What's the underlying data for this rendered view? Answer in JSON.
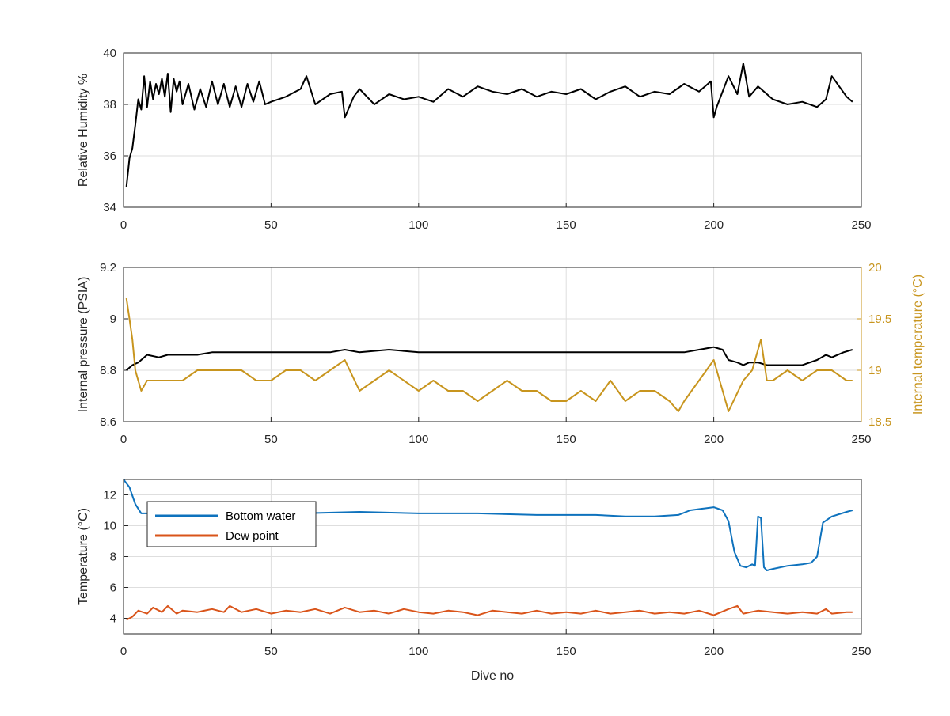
{
  "chart_data": [
    {
      "type": "line",
      "ylabel": "Relative Humidity %",
      "xlim": [
        0,
        250
      ],
      "ylim": [
        34,
        40
      ],
      "xticks": [
        "0",
        "50",
        "100",
        "150",
        "200",
        "250"
      ],
      "yticks": [
        "34",
        "36",
        "38",
        "40"
      ],
      "grid": true,
      "series": [
        {
          "color": "#000000",
          "x": [
            1,
            2,
            3,
            4,
            5,
            6,
            7,
            8,
            9,
            10,
            11,
            12,
            13,
            14,
            15,
            16,
            17,
            18,
            19,
            20,
            22,
            24,
            26,
            28,
            30,
            32,
            34,
            36,
            38,
            40,
            42,
            44,
            46,
            48,
            50,
            55,
            60,
            62,
            65,
            70,
            74,
            75,
            78,
            80,
            85,
            90,
            95,
            100,
            105,
            110,
            115,
            120,
            125,
            130,
            135,
            140,
            145,
            150,
            155,
            160,
            165,
            170,
            175,
            180,
            185,
            190,
            195,
            199,
            200,
            201,
            205,
            208,
            210,
            212,
            215,
            220,
            225,
            230,
            235,
            238,
            240,
            245,
            247
          ],
          "values": [
            34.8,
            35.9,
            36.3,
            37.2,
            38.2,
            37.8,
            39.1,
            37.9,
            38.9,
            38.2,
            38.8,
            38.4,
            39.0,
            38.3,
            39.2,
            37.7,
            39.0,
            38.5,
            38.9,
            38.0,
            38.8,
            37.8,
            38.6,
            37.9,
            38.9,
            38.0,
            38.8,
            37.9,
            38.7,
            37.9,
            38.8,
            38.1,
            38.9,
            38.0,
            38.1,
            38.3,
            38.6,
            39.1,
            38.0,
            38.4,
            38.5,
            37.5,
            38.3,
            38.6,
            38.0,
            38.4,
            38.2,
            38.3,
            38.1,
            38.6,
            38.3,
            38.7,
            38.5,
            38.4,
            38.6,
            38.3,
            38.5,
            38.4,
            38.6,
            38.2,
            38.5,
            38.7,
            38.3,
            38.5,
            38.4,
            38.8,
            38.5,
            38.9,
            37.5,
            37.9,
            39.1,
            38.4,
            39.6,
            38.3,
            38.7,
            38.2,
            38.0,
            38.1,
            37.9,
            38.2,
            39.1,
            38.3,
            38.1
          ]
        }
      ]
    },
    {
      "type": "line",
      "ylabel": "Internal pressure (PSIA)",
      "ylabel_right": "Internal temperature (°C)",
      "xlim": [
        0,
        250
      ],
      "ylim": [
        8.6,
        9.2
      ],
      "ylim_right": [
        18.5,
        20
      ],
      "xticks": [
        "0",
        "50",
        "100",
        "150",
        "200",
        "250"
      ],
      "yticks": [
        "8.6",
        "8.8",
        "9",
        "9.2"
      ],
      "yticks_right": [
        "18.5",
        "19",
        "19.5",
        "20"
      ],
      "grid": true,
      "series": [
        {
          "axis": "left",
          "color": "#000000",
          "x": [
            1,
            3,
            5,
            8,
            12,
            15,
            20,
            25,
            30,
            35,
            40,
            50,
            60,
            70,
            75,
            80,
            90,
            100,
            110,
            120,
            130,
            140,
            150,
            160,
            170,
            180,
            190,
            195,
            200,
            203,
            205,
            208,
            210,
            212,
            215,
            218,
            220,
            225,
            230,
            235,
            238,
            240,
            244,
            247
          ],
          "values": [
            8.8,
            8.82,
            8.83,
            8.86,
            8.85,
            8.86,
            8.86,
            8.86,
            8.87,
            8.87,
            8.87,
            8.87,
            8.87,
            8.87,
            8.88,
            8.87,
            8.88,
            8.87,
            8.87,
            8.87,
            8.87,
            8.87,
            8.87,
            8.87,
            8.87,
            8.87,
            8.87,
            8.88,
            8.89,
            8.88,
            8.84,
            8.83,
            8.82,
            8.83,
            8.83,
            8.82,
            8.82,
            8.82,
            8.82,
            8.84,
            8.86,
            8.85,
            8.87,
            8.88
          ]
        },
        {
          "axis": "right",
          "color": "#c8951e",
          "x": [
            1,
            2,
            3,
            4,
            5,
            6,
            8,
            10,
            15,
            20,
            25,
            30,
            36,
            40,
            45,
            50,
            55,
            60,
            65,
            70,
            75,
            80,
            85,
            90,
            95,
            100,
            105,
            110,
            115,
            120,
            125,
            130,
            135,
            140,
            145,
            150,
            155,
            160,
            165,
            170,
            175,
            180,
            185,
            188,
            190,
            195,
            200,
            203,
            205,
            210,
            213,
            216,
            218,
            220,
            225,
            230,
            235,
            240,
            245,
            247
          ],
          "values": [
            19.7,
            19.5,
            19.3,
            19.0,
            18.9,
            18.8,
            18.9,
            18.9,
            18.9,
            18.9,
            19.0,
            19.0,
            19.0,
            19.0,
            18.9,
            18.9,
            19.0,
            19.0,
            18.9,
            19.0,
            19.1,
            18.8,
            18.9,
            19.0,
            18.9,
            18.8,
            18.9,
            18.8,
            18.8,
            18.7,
            18.8,
            18.9,
            18.8,
            18.8,
            18.7,
            18.7,
            18.8,
            18.7,
            18.9,
            18.7,
            18.8,
            18.8,
            18.7,
            18.6,
            18.7,
            18.9,
            19.1,
            18.8,
            18.6,
            18.9,
            19.0,
            19.3,
            18.9,
            18.9,
            19.0,
            18.9,
            19.0,
            19.0,
            18.9,
            18.9
          ]
        }
      ]
    },
    {
      "type": "line",
      "xlabel": "Dive no",
      "ylabel": "Temperature (°C)",
      "xlim": [
        0,
        250
      ],
      "ylim": [
        3,
        13
      ],
      "xticks": [
        "0",
        "50",
        "100",
        "150",
        "200",
        "250"
      ],
      "yticks": [
        "4",
        "6",
        "8",
        "10",
        "12"
      ],
      "grid": true,
      "legend": "top-left",
      "series": [
        {
          "name": "Bottom water",
          "color": "#0e72bd",
          "x": [
            0,
            2,
            4,
            6,
            10,
            20,
            40,
            60,
            80,
            100,
            120,
            140,
            160,
            170,
            180,
            188,
            192,
            196,
            200,
            203,
            205,
            207,
            209,
            211,
            213,
            214,
            215,
            216,
            217,
            218,
            220,
            225,
            230,
            233,
            235,
            237,
            240,
            245,
            247
          ],
          "values": [
            13.0,
            12.5,
            11.4,
            10.8,
            10.8,
            10.8,
            10.9,
            10.8,
            10.9,
            10.8,
            10.8,
            10.7,
            10.7,
            10.6,
            10.6,
            10.7,
            11.0,
            11.1,
            11.2,
            11.0,
            10.3,
            8.3,
            7.4,
            7.3,
            7.5,
            7.4,
            10.6,
            10.5,
            7.3,
            7.1,
            7.2,
            7.4,
            7.5,
            7.6,
            8.0,
            10.2,
            10.6,
            10.9,
            11.0
          ]
        },
        {
          "name": "Dew point",
          "color": "#d9541a",
          "x": [
            1,
            3,
            5,
            8,
            10,
            13,
            15,
            18,
            20,
            25,
            30,
            34,
            36,
            40,
            45,
            50,
            55,
            60,
            65,
            70,
            75,
            80,
            85,
            90,
            95,
            100,
            105,
            110,
            115,
            120,
            125,
            130,
            135,
            140,
            145,
            150,
            155,
            160,
            165,
            170,
            175,
            180,
            185,
            190,
            195,
            200,
            205,
            208,
            210,
            215,
            220,
            225,
            230,
            235,
            238,
            240,
            245,
            247
          ],
          "values": [
            3.9,
            4.1,
            4.5,
            4.3,
            4.7,
            4.4,
            4.8,
            4.3,
            4.5,
            4.4,
            4.6,
            4.4,
            4.8,
            4.4,
            4.6,
            4.3,
            4.5,
            4.4,
            4.6,
            4.3,
            4.7,
            4.4,
            4.5,
            4.3,
            4.6,
            4.4,
            4.3,
            4.5,
            4.4,
            4.2,
            4.5,
            4.4,
            4.3,
            4.5,
            4.3,
            4.4,
            4.3,
            4.5,
            4.3,
            4.4,
            4.5,
            4.3,
            4.4,
            4.3,
            4.5,
            4.2,
            4.6,
            4.8,
            4.3,
            4.5,
            4.4,
            4.3,
            4.4,
            4.3,
            4.6,
            4.3,
            4.4,
            4.4
          ]
        }
      ]
    }
  ]
}
